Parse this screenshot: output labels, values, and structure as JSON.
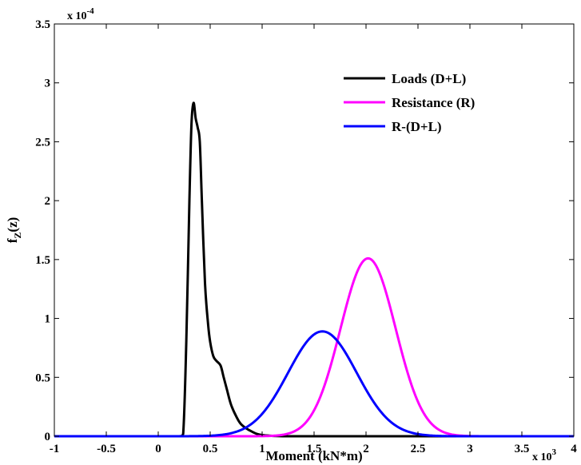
{
  "chart_data": {
    "type": "line",
    "title": "",
    "xlabel": "Moment (kN*m)",
    "ylabel_main": "f",
    "ylabel_sub": "Z",
    "ylabel_tail": "(z)",
    "xlim": [
      -1,
      4
    ],
    "ylim": [
      0,
      3.5
    ],
    "x_multiplier": {
      "base": "x 10",
      "exp": "3"
    },
    "y_multiplier": {
      "base": "x 10",
      "exp": "-4"
    },
    "x_ticks": [
      {
        "v": -1,
        "label": "-1"
      },
      {
        "v": -0.5,
        "label": "-0.5"
      },
      {
        "v": 0,
        "label": "0"
      },
      {
        "v": 0.5,
        "label": "0.5"
      },
      {
        "v": 1,
        "label": "1"
      },
      {
        "v": 1.5,
        "label": "1.5"
      },
      {
        "v": 2,
        "label": "2"
      },
      {
        "v": 2.5,
        "label": "2.5"
      },
      {
        "v": 3,
        "label": "3"
      },
      {
        "v": 3.5,
        "label": "3.5"
      },
      {
        "v": 4,
        "label": "4"
      }
    ],
    "y_ticks": [
      {
        "v": 0,
        "label": "0"
      },
      {
        "v": 0.5,
        "label": "0.5"
      },
      {
        "v": 1,
        "label": "1"
      },
      {
        "v": 1.5,
        "label": "1.5"
      },
      {
        "v": 2,
        "label": "2"
      },
      {
        "v": 2.5,
        "label": "2.5"
      },
      {
        "v": 3,
        "label": "3"
      },
      {
        "v": 3.5,
        "label": "3.5"
      }
    ],
    "grid": false,
    "legend_position": "top-right",
    "series": [
      {
        "name": "Loads (D+L)",
        "color": "#000000",
        "x": [
          -1.0,
          0.0,
          0.2,
          0.24,
          0.27,
          0.3,
          0.32,
          0.34,
          0.36,
          0.38,
          0.4,
          0.42,
          0.45,
          0.48,
          0.5,
          0.53,
          0.56,
          0.6,
          0.63,
          0.66,
          0.7,
          0.75,
          0.8,
          0.9,
          1.0,
          1.2,
          1.5,
          2.0,
          4.0
        ],
        "y": [
          0,
          0,
          0,
          0.02,
          0.8,
          2.0,
          2.65,
          2.83,
          2.7,
          2.62,
          2.5,
          2.0,
          1.3,
          0.95,
          0.8,
          0.68,
          0.64,
          0.6,
          0.5,
          0.4,
          0.27,
          0.17,
          0.1,
          0.04,
          0.01,
          0,
          0,
          0,
          0
        ]
      },
      {
        "name": "Resistance (R)",
        "color": "#ff00ff",
        "mean": 2.02,
        "sd": 0.265,
        "peak": 1.51,
        "x": [
          -1.0,
          1.2,
          1.3,
          1.4,
          1.5,
          1.6,
          1.7,
          1.8,
          1.9,
          2.0,
          2.02,
          2.1,
          2.2,
          2.3,
          2.4,
          2.5,
          2.6,
          2.7,
          2.8,
          2.9,
          3.0,
          3.2,
          3.4,
          3.7,
          4.0
        ],
        "y": [
          0,
          0.0,
          0.04,
          0.1,
          0.22,
          0.42,
          0.71,
          1.04,
          1.34,
          1.51,
          1.51,
          1.44,
          1.2,
          0.89,
          0.58,
          0.33,
          0.17,
          0.08,
          0.03,
          0.01,
          0,
          0,
          0,
          0,
          0
        ]
      },
      {
        "name": "R-(D+L)",
        "color": "#0000ff",
        "mean": 1.58,
        "sd": 0.33,
        "peak": 0.89,
        "x": [
          -1.0,
          0.0,
          0.4,
          0.6,
          0.8,
          0.9,
          1.0,
          1.1,
          1.2,
          1.3,
          1.4,
          1.5,
          1.58,
          1.7,
          1.8,
          1.9,
          2.0,
          2.1,
          2.2,
          2.3,
          2.4,
          2.6,
          2.8,
          3.0,
          3.5,
          4.0
        ],
        "y": [
          0,
          0,
          0.0,
          0.02,
          0.05,
          0.11,
          0.19,
          0.3,
          0.44,
          0.59,
          0.74,
          0.86,
          0.89,
          0.83,
          0.72,
          0.57,
          0.41,
          0.27,
          0.16,
          0.09,
          0.05,
          0.01,
          0,
          0,
          0,
          0
        ]
      }
    ]
  }
}
